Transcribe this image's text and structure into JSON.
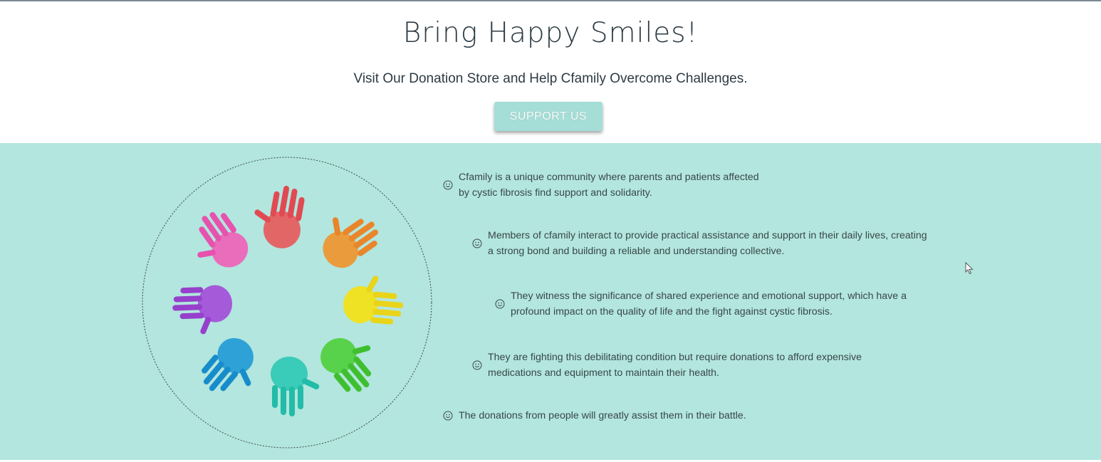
{
  "hero": {
    "title": "Bring Happy Smiles!",
    "subtitle": "Visit Our Donation Store and Help Cfamily Overcome Challenges.",
    "button_label": "SUPPORT US"
  },
  "colors": {
    "band_background": "#b2e6de",
    "button_background": "#a5ded7",
    "text": "#2c3a42"
  },
  "image": {
    "description_icon": "colorful-handprints-circle-image"
  },
  "points": [
    {
      "text": "Cfamily is a unique community where parents and patients affected by cystic fibrosis find support and solidarity.",
      "icon": "smiley-icon"
    },
    {
      "text": "Members of cfamily interact to provide practical assistance and support in their daily lives, creating a strong bond and building a reliable and understanding collective.",
      "icon": "smiley-icon"
    },
    {
      "text": "They witness the significance of shared experience and emotional support, which have a profound impact on the quality of life and the fight against cystic fibrosis.",
      "icon": "smiley-icon"
    },
    {
      "text": "They are fighting this debilitating condition but require donations to afford expensive medications and equipment to maintain their health.",
      "icon": "smiley-icon"
    },
    {
      "text": "The donations from people will greatly assist them in their battle.",
      "icon": "smiley-icon"
    }
  ]
}
